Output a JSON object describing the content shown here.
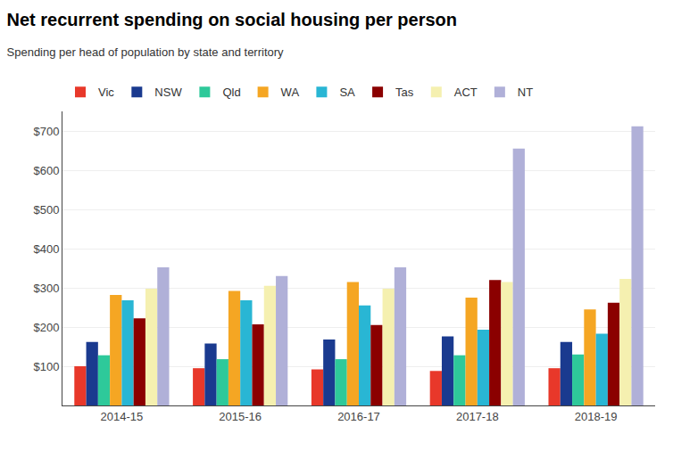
{
  "chart_data": {
    "type": "bar",
    "title": "Net recurrent spending on social housing per person",
    "subtitle": "Spending per head of population by state and territory",
    "categories": [
      "2014-15",
      "2015-16",
      "2016-17",
      "2017-18",
      "2018-19"
    ],
    "series": [
      {
        "name": "Vic",
        "color": "#e8382a",
        "values": [
          100,
          95,
          92,
          88,
          95
        ]
      },
      {
        "name": "NSW",
        "color": "#1a3a8f",
        "values": [
          162,
          158,
          168,
          176,
          162
        ]
      },
      {
        "name": "Qld",
        "color": "#2ec99a",
        "values": [
          128,
          118,
          118,
          128,
          130
        ]
      },
      {
        "name": "WA",
        "color": "#f5a623",
        "values": [
          282,
          292,
          315,
          275,
          245
        ]
      },
      {
        "name": "SA",
        "color": "#29b6d4",
        "values": [
          268,
          268,
          255,
          193,
          183
        ]
      },
      {
        "name": "Tas",
        "color": "#8b0000",
        "values": [
          222,
          207,
          205,
          320,
          262
        ]
      },
      {
        "name": "ACT",
        "color": "#f5f0b0",
        "values": [
          298,
          305,
          298,
          315,
          323
        ]
      },
      {
        "name": "NT",
        "color": "#b0b0d8",
        "values": [
          352,
          330,
          352,
          655,
          712
        ]
      }
    ],
    "ylim": [
      0,
      750
    ],
    "yticks": [
      {
        "value": 100,
        "label": "$100"
      },
      {
        "value": 200,
        "label": "$200"
      },
      {
        "value": 300,
        "label": "$300"
      },
      {
        "value": 400,
        "label": "$400"
      },
      {
        "value": 500,
        "label": "$500"
      },
      {
        "value": 600,
        "label": "$600"
      },
      {
        "value": 700,
        "label": "$700"
      }
    ],
    "grid": true,
    "legend": "top"
  }
}
